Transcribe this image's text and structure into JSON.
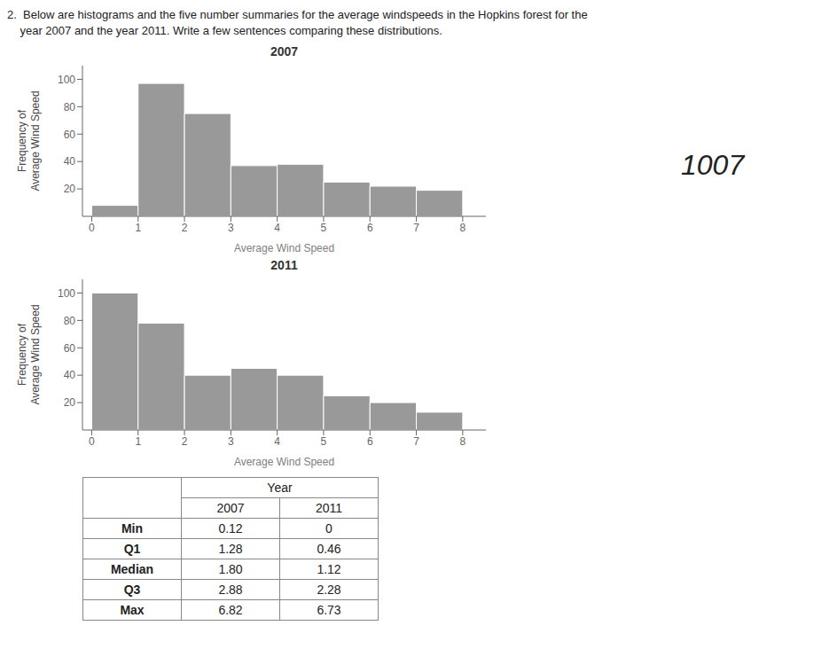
{
  "title": [
    "2.  Below are histograms and the five number summaries for the average windspeeds in the Hopkins forest for the",
    "    year 2007 and the year 2011. Write a few sentences comparing these distributions."
  ],
  "annotations": [
    "1007"
  ],
  "chart_data": [
    {
      "type": "histogram",
      "title": "2007",
      "xlabel": "Average Wind Speed",
      "ylabel": "Frequency of\nAverage Wind Speed",
      "bins": [
        0,
        1,
        2,
        3,
        4,
        5,
        6,
        7,
        8
      ],
      "values": [
        8,
        97,
        75,
        37,
        38,
        25,
        22,
        19
      ],
      "color": "#999999",
      "xlim": [
        -0.2,
        8.5
      ],
      "xticks": [
        0,
        1,
        2,
        3,
        4,
        5,
        6,
        7,
        8
      ],
      "ylim": [
        0,
        110
      ],
      "yticks": [
        20,
        40,
        60,
        80,
        100
      ]
    },
    {
      "type": "histogram",
      "title": "2011",
      "xlabel": "Average Wind Speed",
      "ylabel": "Frequency of\nAverage Wind Speed",
      "bins": [
        0,
        1,
        2,
        3,
        4,
        5,
        6,
        7,
        8
      ],
      "values": [
        100,
        78,
        40,
        45,
        40,
        25,
        20,
        13
      ],
      "color": "#999999",
      "xlim": [
        -0.2,
        8.5
      ],
      "xticks": [
        0,
        1,
        2,
        3,
        4,
        5,
        6,
        7,
        8
      ],
      "ylim": [
        0,
        110
      ],
      "yticks": [
        20,
        40,
        60,
        80,
        100
      ]
    },
    {
      "type": "table",
      "title": "Year",
      "categories": [
        "Min",
        "Q1",
        "Median",
        "Q3",
        "Max"
      ],
      "series": [
        {
          "name": "2007",
          "values": [
            0.12,
            1.28,
            1.8,
            2.88,
            6.82
          ],
          "value_labels": [
            "0.12",
            "1.28",
            "1.80",
            "2.88",
            "6.82"
          ]
        },
        {
          "name": "2011",
          "values": [
            0,
            0.46,
            1.12,
            2.28,
            6.73
          ],
          "value_labels": [
            "0",
            "0.46",
            "1.12",
            "2.28",
            "6.73"
          ]
        }
      ]
    }
  ]
}
